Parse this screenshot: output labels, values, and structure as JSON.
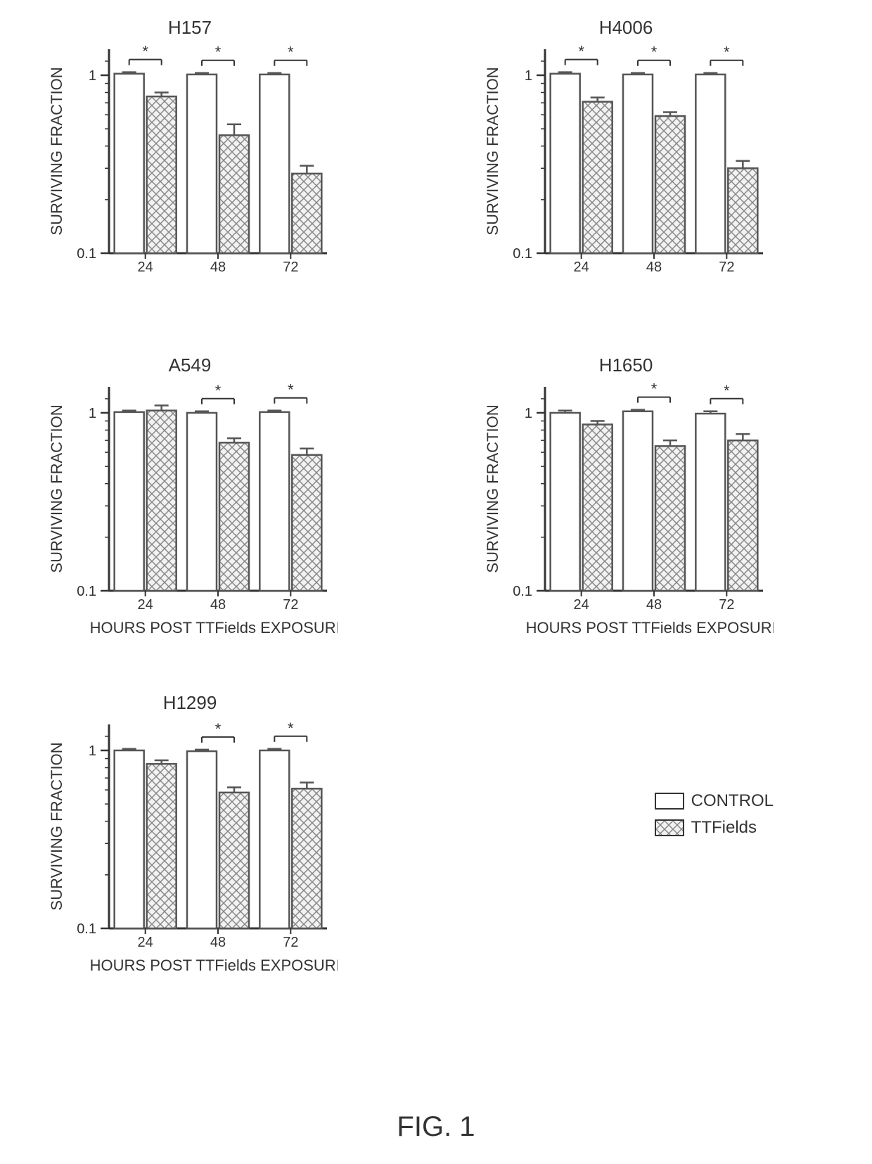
{
  "figure_caption": "FIG. 1",
  "colors": {
    "axis": "#333333",
    "bar_fill_control": "#ffffff",
    "bar_fill_tt": "#f2f2f2",
    "bar_stroke": "#555555",
    "hatch": "#888888",
    "text": "#333333",
    "background": "#ffffff",
    "sig_star": "#333333"
  },
  "axes": {
    "ylabel": "SURVIVING FRACTION",
    "ylim_min": 0.1,
    "ylim_max": 1.4,
    "ytick_major": 1,
    "ytick_label_top": "1",
    "ytick_label_bottom": "0.1",
    "categories": [
      "24",
      "48",
      "72"
    ],
    "font_label": 22,
    "font_tick": 20,
    "font_title": 26,
    "log_scale": true
  },
  "common_xlabel": "HOURS POST TTFields EXPOSURE",
  "legend": {
    "items": [
      {
        "label": "CONTROL",
        "pattern": "plain"
      },
      {
        "label": "TTFields",
        "pattern": "hatch"
      }
    ]
  },
  "panels": [
    {
      "id": "h157",
      "title": "H157",
      "control": [
        1.02,
        1.01,
        1.01
      ],
      "tt": [
        0.76,
        0.46,
        0.28
      ],
      "control_err": [
        0.02,
        0.02,
        0.02
      ],
      "tt_err": [
        0.04,
        0.07,
        0.03
      ],
      "sig": [
        true,
        true,
        true
      ]
    },
    {
      "id": "h4006",
      "title": "H4006",
      "control": [
        1.02,
        1.01,
        1.01
      ],
      "tt": [
        0.71,
        0.59,
        0.3
      ],
      "control_err": [
        0.02,
        0.02,
        0.02
      ],
      "tt_err": [
        0.04,
        0.03,
        0.03
      ],
      "sig": [
        true,
        true,
        true
      ]
    },
    {
      "id": "a549",
      "title": "A549",
      "control": [
        1.01,
        1.0,
        1.01
      ],
      "tt": [
        1.03,
        0.68,
        0.58
      ],
      "control_err": [
        0.02,
        0.02,
        0.02
      ],
      "tt_err": [
        0.07,
        0.04,
        0.05
      ],
      "sig": [
        false,
        true,
        true
      ],
      "show_xlabel": true
    },
    {
      "id": "h1650",
      "title": "H1650",
      "control": [
        1.0,
        1.02,
        0.99
      ],
      "tt": [
        0.86,
        0.65,
        0.7
      ],
      "control_err": [
        0.03,
        0.02,
        0.03
      ],
      "tt_err": [
        0.04,
        0.05,
        0.06
      ],
      "sig": [
        false,
        true,
        true
      ],
      "show_xlabel": true
    },
    {
      "id": "h1299",
      "title": "H1299",
      "control": [
        1.0,
        0.99,
        1.0
      ],
      "tt": [
        0.84,
        0.58,
        0.61
      ],
      "control_err": [
        0.02,
        0.02,
        0.02
      ],
      "tt_err": [
        0.04,
        0.04,
        0.05
      ],
      "sig": [
        false,
        true,
        true
      ],
      "show_xlabel": true
    }
  ]
}
